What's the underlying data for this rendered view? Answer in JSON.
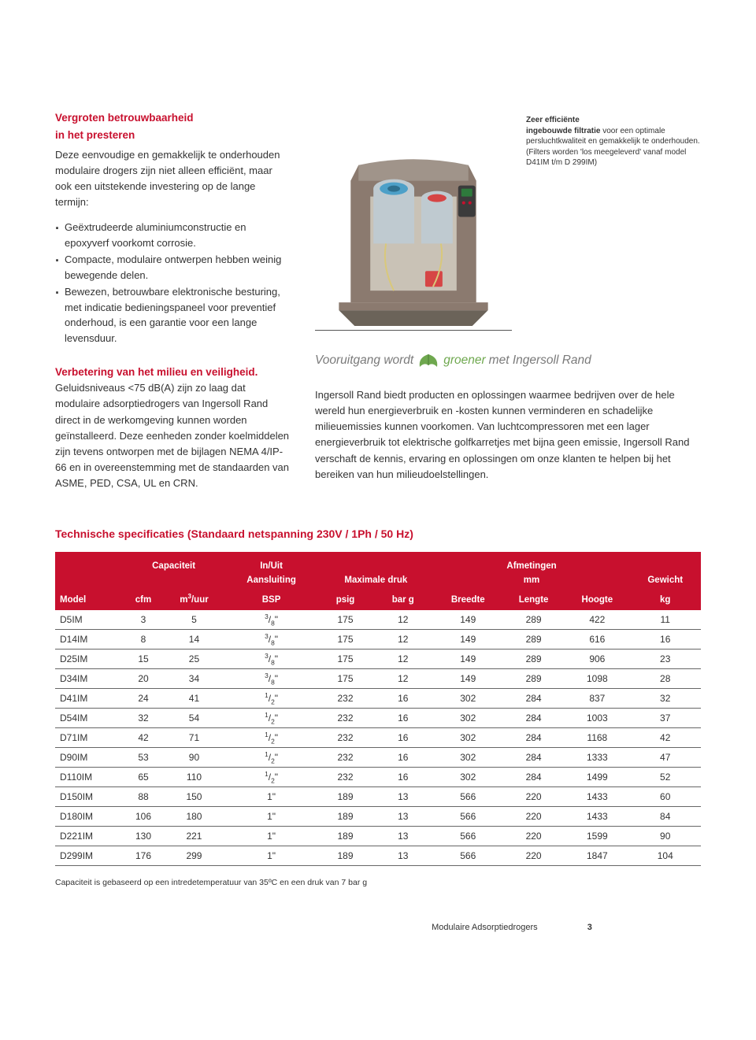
{
  "colors": {
    "brand_red": "#c8102e",
    "text": "#333333",
    "grey_italic": "#7a7a7a",
    "green": "#6fa84f",
    "white": "#ffffff",
    "row_border": "#666666"
  },
  "left": {
    "h1a": "Vergroten betrouwbaarheid",
    "h1b": "in het presteren",
    "intro": "Deze eenvoudige en gemakkelijk te onderhouden modulaire drogers zijn niet alleen efficiënt, maar ook een uitstekende investering op de lange termijn:",
    "bullets": [
      "Geëxtrudeerde aluminiumconstructie en epoxyverf voorkomt corrosie.",
      "Compacte, modulaire ontwerpen hebben weinig bewegende delen.",
      "Bewezen, betrouwbare elektronische besturing, met indicatie bedieningspaneel voor preventief onderhoud, is een garantie voor een lange levensduur."
    ],
    "h2": "Verbetering van het milieu en veiligheid.",
    "body2": "Geluidsniveaus <75 dB(A) zijn zo laag dat modulaire adsorptiedrogers van Ingersoll Rand direct in de werkomgeving kunnen worden geïnstalleerd. Deze eenheden zonder koelmiddelen zijn tevens ontworpen met de bijlagen NEMA 4/IP-66 en in overeenstemming met de standaarden van ASME, PED, CSA, UL en CRN."
  },
  "figure": {
    "caption_bold1": "Zeer efficiënte",
    "caption_bold2": "ingebouwde filtratie",
    "caption_rest": "voor een optimale persluchtkwaliteit en gemakkelijk te onderhouden. (Filters worden 'los meegeleverd' vanaf model D41IM t/m D 299IM)",
    "illustration_colors": {
      "housing": "#8b7a6f",
      "base": "#6b6359",
      "cylinder_outer": "#bfcad0",
      "cylinder_inner_a": "#4da0c8",
      "cylinder_inner_b": "#d64545",
      "bracket": "#c9c2b6",
      "screen": "#2e7a3c"
    }
  },
  "tagline": {
    "pre": "Vooruitgang wordt",
    "green": "groener",
    "post": "met Ingersoll Rand"
  },
  "env_body": "Ingersoll Rand biedt producten en oplossingen waarmee bedrijven over de hele wereld hun energieverbruik en -kosten kunnen verminderen en schadelijke milieuemissies kunnen voorkomen. Van luchtcompressoren met een lager energieverbruik tot elektrische golfkarretjes met bijna geen emissie, Ingersoll Rand verschaft de kennis, ervaring en oplossingen om onze klanten te helpen bij het bereiken van hun milieudoelstellingen.",
  "spec": {
    "title": "Technische specificaties  (Standaard netspanning 230V / 1Ph / 50 Hz)",
    "head": {
      "model": "Model",
      "capaciteit": "Capaciteit",
      "cfm": "cfm",
      "m3uur_pre": "m",
      "m3uur_sup": "3",
      "m3uur_post": "/uur",
      "inuit": "In/Uit",
      "aansluiting": "Aansluiting",
      "bsp": "BSP",
      "maxdruk": "Maximale druk",
      "psig": "psig",
      "barg": "bar g",
      "afm": "Afmetingen",
      "mm": "mm",
      "breedte": "Breedte",
      "lengte": "Lengte",
      "hoogte": "Hoogte",
      "gewicht": "Gewicht",
      "kg": "kg"
    },
    "rows": [
      {
        "model": "D5IM",
        "cfm": "3",
        "m3": "5",
        "conn_n": "3",
        "conn_d": "8",
        "psig": "175",
        "bar": "12",
        "b": "149",
        "l": "289",
        "h": "422",
        "kg": "11"
      },
      {
        "model": "D14IM",
        "cfm": "8",
        "m3": "14",
        "conn_n": "3",
        "conn_d": "8",
        "psig": "175",
        "bar": "12",
        "b": "149",
        "l": "289",
        "h": "616",
        "kg": "16"
      },
      {
        "model": "D25IM",
        "cfm": "15",
        "m3": "25",
        "conn_n": "3",
        "conn_d": "8",
        "psig": "175",
        "bar": "12",
        "b": "149",
        "l": "289",
        "h": "906",
        "kg": "23"
      },
      {
        "model": "D34IM",
        "cfm": "20",
        "m3": "34",
        "conn_n": "3",
        "conn_d": "8",
        "psig": "175",
        "bar": "12",
        "b": "149",
        "l": "289",
        "h": "1098",
        "kg": "28"
      },
      {
        "model": "D41IM",
        "cfm": "24",
        "m3": "41",
        "conn_n": "1",
        "conn_d": "2",
        "psig": "232",
        "bar": "16",
        "b": "302",
        "l": "284",
        "h": "837",
        "kg": "32"
      },
      {
        "model": "D54IM",
        "cfm": "32",
        "m3": "54",
        "conn_n": "1",
        "conn_d": "2",
        "psig": "232",
        "bar": "16",
        "b": "302",
        "l": "284",
        "h": "1003",
        "kg": "37"
      },
      {
        "model": "D71IM",
        "cfm": "42",
        "m3": "71",
        "conn_n": "1",
        "conn_d": "2",
        "psig": "232",
        "bar": "16",
        "b": "302",
        "l": "284",
        "h": "1168",
        "kg": "42"
      },
      {
        "model": "D90IM",
        "cfm": "53",
        "m3": "90",
        "conn_n": "1",
        "conn_d": "2",
        "psig": "232",
        "bar": "16",
        "b": "302",
        "l": "284",
        "h": "1333",
        "kg": "47"
      },
      {
        "model": "D110IM",
        "cfm": "65",
        "m3": "110",
        "conn_n": "1",
        "conn_d": "2",
        "psig": "232",
        "bar": "16",
        "b": "302",
        "l": "284",
        "h": "1499",
        "kg": "52"
      },
      {
        "model": "D150IM",
        "cfm": "88",
        "m3": "150",
        "conn_n": "",
        "conn_d": "",
        "conn_whole": "1\"",
        "psig": "189",
        "bar": "13",
        "b": "566",
        "l": "220",
        "h": "1433",
        "kg": "60"
      },
      {
        "model": "D180IM",
        "cfm": "106",
        "m3": "180",
        "conn_n": "",
        "conn_d": "",
        "conn_whole": "1\"",
        "psig": "189",
        "bar": "13",
        "b": "566",
        "l": "220",
        "h": "1433",
        "kg": "84"
      },
      {
        "model": "D221IM",
        "cfm": "130",
        "m3": "221",
        "conn_n": "",
        "conn_d": "",
        "conn_whole": "1\"",
        "psig": "189",
        "bar": "13",
        "b": "566",
        "l": "220",
        "h": "1599",
        "kg": "90"
      },
      {
        "model": "D299IM",
        "cfm": "176",
        "m3": "299",
        "conn_n": "",
        "conn_d": "",
        "conn_whole": "1\"",
        "psig": "189",
        "bar": "13",
        "b": "566",
        "l": "220",
        "h": "1847",
        "kg": "104"
      }
    ],
    "footnote": "Capaciteit is gebaseerd op een  intredetemperatuur van 35ºC en een druk van 7 bar g"
  },
  "footer": {
    "text": "Modulaire Adsorptiedrogers",
    "page": "3"
  }
}
